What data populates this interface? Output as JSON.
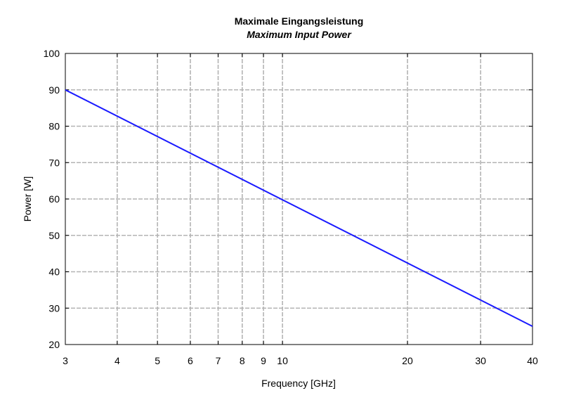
{
  "chart_data": {
    "type": "line",
    "title": "Maximale Eingangsleistung",
    "subtitle": "Maximum Input Power",
    "xlabel": "Frequency [GHz]",
    "ylabel": "Power [W]",
    "xscale": "log",
    "xlim": [
      3,
      40
    ],
    "ylim": [
      20,
      100
    ],
    "xticks": [
      3,
      4,
      5,
      6,
      7,
      8,
      9,
      10,
      20,
      30,
      40
    ],
    "yticks": [
      20,
      30,
      40,
      50,
      60,
      70,
      80,
      90,
      100
    ],
    "grid": true,
    "series": [
      {
        "color": "#1a1aff",
        "x": [
          3,
          40
        ],
        "y": [
          90,
          25
        ]
      }
    ]
  }
}
